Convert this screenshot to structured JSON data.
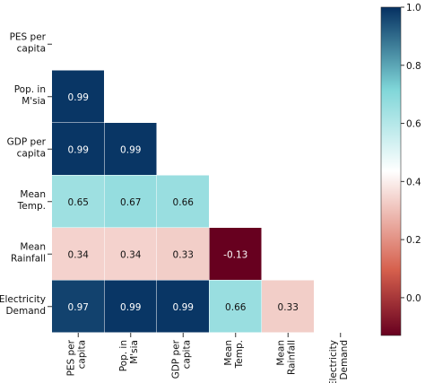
{
  "chart_data": {
    "type": "heatmap",
    "variant": "lower-triangular correlation matrix",
    "variables": [
      [
        "PES per",
        "capita"
      ],
      [
        "Pop. in",
        "M'sia"
      ],
      [
        "GDP per",
        "capita"
      ],
      [
        "Mean",
        "Temp."
      ],
      [
        "Mean",
        "Rainfall"
      ],
      [
        "Electricity",
        "Demand"
      ]
    ],
    "matrix": [
      [
        null,
        null,
        null,
        null,
        null,
        null
      ],
      [
        0.99,
        null,
        null,
        null,
        null,
        null
      ],
      [
        0.99,
        0.99,
        null,
        null,
        null,
        null
      ],
      [
        0.65,
        0.67,
        0.66,
        null,
        null,
        null
      ],
      [
        0.34,
        0.34,
        0.33,
        -0.13,
        null,
        null
      ],
      [
        0.97,
        0.99,
        0.99,
        0.66,
        0.33,
        null
      ]
    ],
    "cell_labels": [
      [
        null,
        null,
        null,
        null,
        null,
        null
      ],
      [
        "0.99",
        null,
        null,
        null,
        null,
        null
      ],
      [
        "0.99",
        "0.99",
        null,
        null,
        null,
        null
      ],
      [
        "0.65",
        "0.67",
        "0.66",
        null,
        null,
        null
      ],
      [
        "0.34",
        "0.34",
        "0.33",
        "-0.13",
        null,
        null
      ],
      [
        "0.97",
        "0.99",
        "0.99",
        "0.66",
        "0.33",
        null
      ]
    ],
    "colormap": "red-white-blue (seismic-like)",
    "colormap_stops": [
      "#67001f",
      "#d6604d",
      "#ffffff",
      "#7fd6d8",
      "#053061"
    ],
    "colorbar": {
      "range": [
        -0.13,
        1.0
      ],
      "ticks": [
        0.0,
        0.2,
        0.4,
        0.6,
        0.8,
        1.0
      ],
      "tick_labels": [
        "0.0",
        "0.2",
        "0.4",
        "0.6",
        "0.8",
        "1.0"
      ],
      "placement": "right"
    },
    "title": "",
    "xlabel": "",
    "ylabel": ""
  }
}
